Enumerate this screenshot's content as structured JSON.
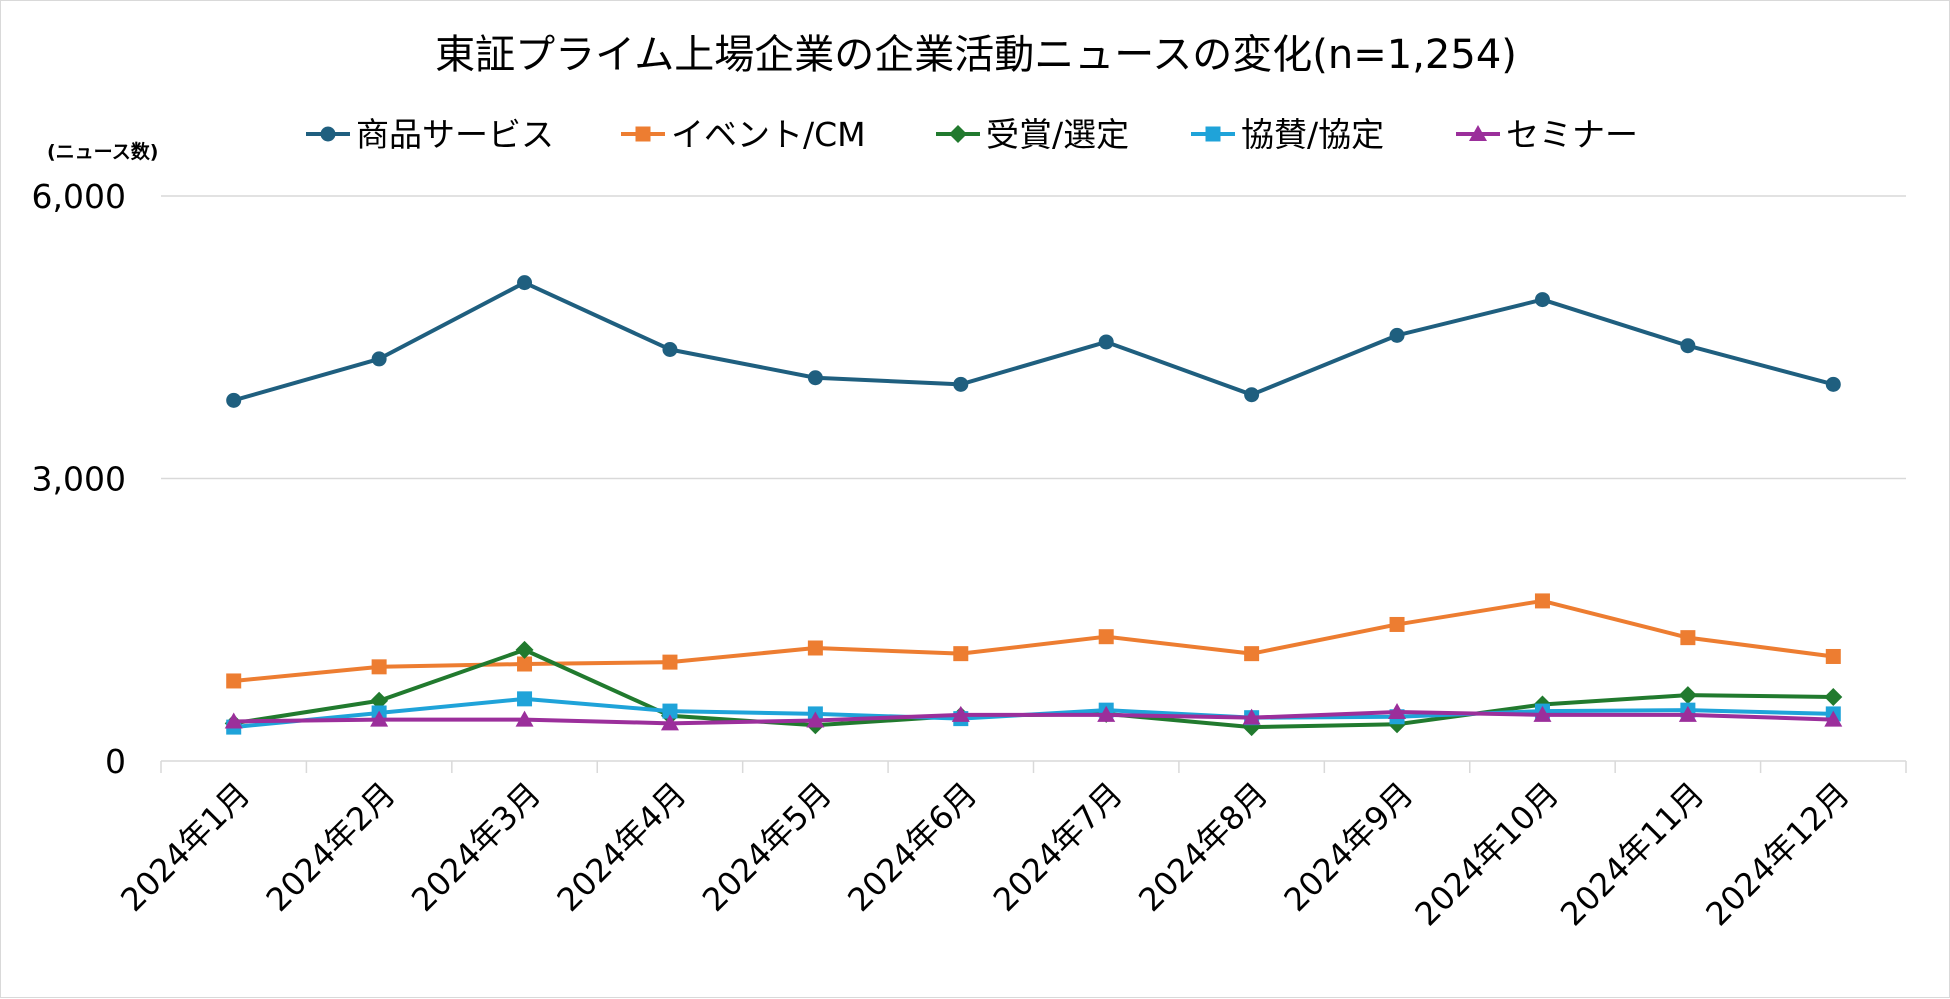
{
  "chart_data": {
    "type": "line",
    "title": "東証プライム上場企業の企業活動ニュースの変化(n=1,254)",
    "ylabel": "(ニュース数)",
    "xlabel": "",
    "categories": [
      "2024年1月",
      "2024年2月",
      "2024年3月",
      "2024年4月",
      "2024年5月",
      "2024年6月",
      "2024年7月",
      "2024年8月",
      "2024年9月",
      "2024年10月",
      "2024年11月",
      "2024年12月"
    ],
    "y_ticks": [
      "0",
      "3,000",
      "6,000"
    ],
    "ylim": [
      0,
      6000
    ],
    "grid": true,
    "legend_position": "top",
    "series": [
      {
        "name": "商品サービス",
        "color": "#1f5f7f",
        "marker": "circle",
        "values": [
          3830,
          4270,
          5080,
          4370,
          4070,
          4000,
          4450,
          3890,
          4520,
          4900,
          4410,
          4000
        ]
      },
      {
        "name": "イベント/CM",
        "color": "#ed7d31",
        "marker": "square",
        "values": [
          850,
          1000,
          1030,
          1050,
          1200,
          1140,
          1320,
          1140,
          1450,
          1700,
          1310,
          1110
        ]
      },
      {
        "name": "受賞/選定",
        "color": "#217a2e",
        "marker": "diamond",
        "values": [
          400,
          640,
          1180,
          480,
          380,
          480,
          500,
          360,
          390,
          600,
          700,
          680
        ]
      },
      {
        "name": "協賛/協定",
        "color": "#1fa3d9",
        "marker": "square",
        "values": [
          360,
          510,
          660,
          530,
          500,
          450,
          540,
          460,
          470,
          530,
          540,
          500
        ]
      },
      {
        "name": "セミナー",
        "color": "#9b2f9b",
        "marker": "triangle",
        "values": [
          420,
          440,
          440,
          400,
          430,
          490,
          490,
          460,
          520,
          490,
          490,
          440
        ]
      }
    ]
  }
}
